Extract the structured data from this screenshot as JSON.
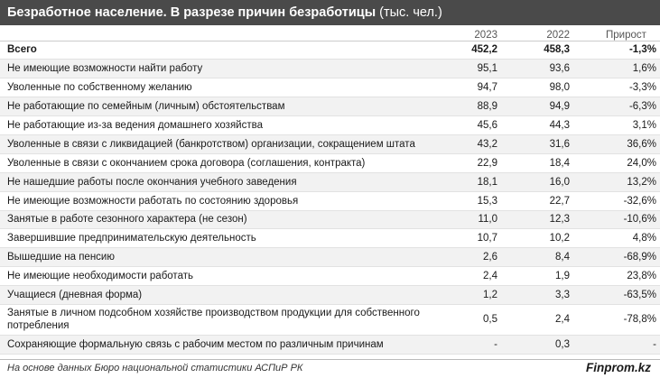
{
  "header": {
    "title": "Безработное население. В разрезе причин безработицы",
    "unit": " (тыс. чел.)"
  },
  "chart_data": {
    "type": "table",
    "title": "Безработное население. В разрезе причин безработицы",
    "unit": "(тыс. чел.)",
    "columns": [
      "",
      "2023",
      "2022",
      "Прирост"
    ],
    "rows": [
      {
        "label": "Всего",
        "y2023": "452,2",
        "y2022": "458,3",
        "growth": "-1,3%"
      },
      {
        "label": "Не имеющие возможности найти работу",
        "y2023": "95,1",
        "y2022": "93,6",
        "growth": "1,6%"
      },
      {
        "label": "Уволенные по собственному желанию",
        "y2023": "94,7",
        "y2022": "98,0",
        "growth": "-3,3%"
      },
      {
        "label": "Не работающие по семейным (личным) обстоятельствам",
        "y2023": "88,9",
        "y2022": "94,9",
        "growth": "-6,3%"
      },
      {
        "label": "Не работающие из-за ведения домашнего хозяйства",
        "y2023": "45,6",
        "y2022": "44,3",
        "growth": "3,1%"
      },
      {
        "label": "Уволенные в связи с ликвидацией (банкротством) организации, сокращением штата",
        "y2023": "43,2",
        "y2022": "31,6",
        "growth": "36,6%"
      },
      {
        "label": "Уволенные в связи с окончанием срока договора (соглашения, контракта)",
        "y2023": "22,9",
        "y2022": "18,4",
        "growth": "24,0%"
      },
      {
        "label": "Не нашедшие работы после окончания учебного заведения",
        "y2023": "18,1",
        "y2022": "16,0",
        "growth": "13,2%"
      },
      {
        "label": "Не имеющие возможности работать по состоянию здоровья",
        "y2023": "15,3",
        "y2022": "22,7",
        "growth": "-32,6%"
      },
      {
        "label": "Занятые в работе сезонного характера (не сезон)",
        "y2023": "11,0",
        "y2022": "12,3",
        "growth": "-10,6%"
      },
      {
        "label": "Завершившие предпринимательскую деятельность",
        "y2023": "10,7",
        "y2022": "10,2",
        "growth": "4,8%"
      },
      {
        "label": "Вышедшие на пенсию",
        "y2023": "2,6",
        "y2022": "8,4",
        "growth": "-68,9%"
      },
      {
        "label": "Не имеющие необходимости работать",
        "y2023": "2,4",
        "y2022": "1,9",
        "growth": "23,8%"
      },
      {
        "label": "Учащиеся (дневная форма)",
        "y2023": "1,2",
        "y2022": "3,3",
        "growth": "-63,5%"
      },
      {
        "label": "Занятые в личном подсобном хозяйстве производством продукции для собственного потребления",
        "y2023": "0,5",
        "y2022": "2,4",
        "growth": "-78,8%"
      },
      {
        "label": "Сохраняющие формальную связь с рабочим местом по различным причинам",
        "y2023": "-",
        "y2022": "0,3",
        "growth": "-"
      }
    ]
  },
  "footer": {
    "source": "На основе данных Бюро национальной статистики АСПиР РК",
    "brand": "Finprom.kz"
  }
}
